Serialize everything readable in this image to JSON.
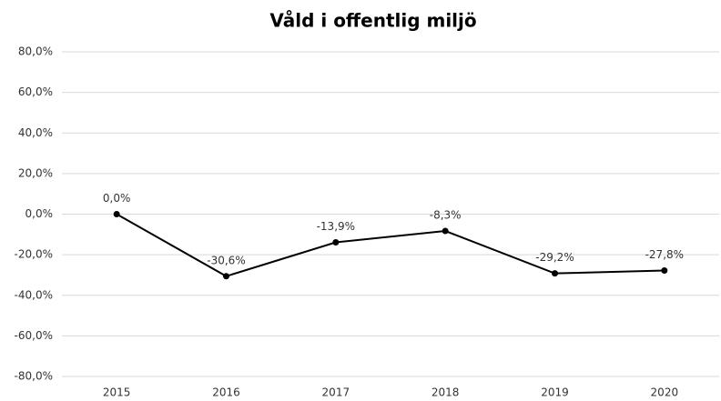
{
  "chart_data": {
    "type": "line",
    "title": "Våld i offentlig miljö",
    "categories": [
      "2015",
      "2016",
      "2017",
      "2018",
      "2019",
      "2020"
    ],
    "series": [
      {
        "name": "Våld i offentlig miljö",
        "color": "#000000",
        "values": [
          0.0,
          -30.6,
          -13.9,
          -8.3,
          -29.2,
          -27.8
        ],
        "value_labels": [
          "0,0%",
          "-30,6%",
          "-13,9%",
          "-8,3%",
          "-29,2%",
          "-27,8%"
        ]
      }
    ],
    "ylim": [
      -80,
      80
    ],
    "yticks": [
      {
        "value": -80,
        "label": "-80,0%"
      },
      {
        "value": -60,
        "label": "-60,0%"
      },
      {
        "value": -40,
        "label": "-40,0%"
      },
      {
        "value": -20,
        "label": "-20,0%"
      },
      {
        "value": 0,
        "label": "0,0%"
      },
      {
        "value": 20,
        "label": "20,0%"
      },
      {
        "value": 40,
        "label": "40,0%"
      },
      {
        "value": 60,
        "label": "60,0%"
      },
      {
        "value": 80,
        "label": "80,0%"
      }
    ],
    "grid": true
  }
}
